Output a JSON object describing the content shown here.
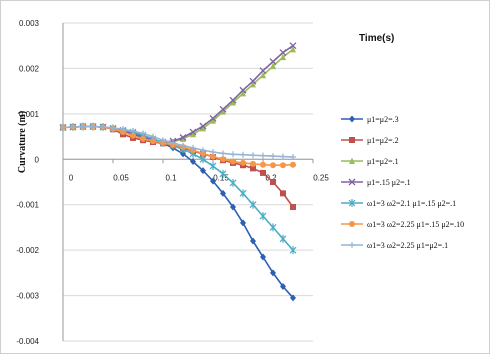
{
  "chart_data": {
    "type": "line",
    "title": "",
    "xlabel": "Time(s)",
    "ylabel": "Curvature (m)",
    "xlim": [
      0,
      0.25
    ],
    "ylim": [
      -0.004,
      0.003
    ],
    "x_ticks": [
      "0",
      "0.05",
      "0.1",
      "0.15",
      "0.2",
      "0.25"
    ],
    "y_ticks": [
      "0.003",
      "0.002",
      "0.001",
      "0",
      "-0.001",
      "-0.002",
      "-0.003",
      "-0.004"
    ],
    "grid": "horizontal",
    "legend_position": "right",
    "x": [
      0,
      0.01,
      0.02,
      0.03,
      0.04,
      0.05,
      0.06,
      0.07,
      0.08,
      0.09,
      0.1,
      0.11,
      0.12,
      0.13,
      0.14,
      0.15,
      0.16,
      0.17,
      0.18,
      0.19,
      0.2,
      0.21,
      0.22,
      0.23
    ],
    "series": [
      {
        "name": "μ1=μ2=.3",
        "color": "#2f5fb3",
        "marker": "diamond",
        "values": [
          0.0007,
          0.00071,
          0.00072,
          0.00072,
          0.00071,
          0.00068,
          0.00062,
          0.00055,
          0.00048,
          0.00042,
          0.00035,
          0.00025,
          0.00012,
          -5e-05,
          -0.00025,
          -0.00048,
          -0.00075,
          -0.00105,
          -0.0014,
          -0.0018,
          -0.00215,
          -0.0025,
          -0.0028,
          -0.00305
        ]
      },
      {
        "name": "μ1=μ2=.2",
        "color": "#c0504d",
        "marker": "square",
        "values": [
          0.0007,
          0.00071,
          0.00072,
          0.00072,
          0.00071,
          0.00066,
          0.00055,
          0.00047,
          0.00042,
          0.00038,
          0.00035,
          0.0003,
          0.00025,
          0.00018,
          0.00012,
          5e-05,
          -2e-05,
          -8e-05,
          -0.00013,
          -0.0002,
          -0.0003,
          -0.0005,
          -0.00075,
          -0.00105
        ]
      },
      {
        "name": "μ1=μ2=.1",
        "color": "#9bbb59",
        "marker": "triangle",
        "values": [
          0.0007,
          0.00071,
          0.00072,
          0.00072,
          0.00071,
          0.00068,
          0.00062,
          0.00057,
          0.0005,
          0.00042,
          0.00037,
          0.00038,
          0.00045,
          0.00055,
          0.00068,
          0.00085,
          0.00105,
          0.00125,
          0.00145,
          0.00165,
          0.00185,
          0.00205,
          0.00225,
          0.00242
        ]
      },
      {
        "name": "μ1=.15 μ2=.1",
        "color": "#8064a2",
        "marker": "x",
        "values": [
          0.0007,
          0.00071,
          0.00072,
          0.00072,
          0.00071,
          0.00068,
          0.00062,
          0.00057,
          0.0005,
          0.00042,
          0.00038,
          0.0004,
          0.00048,
          0.0006,
          0.00073,
          0.0009,
          0.0011,
          0.0013,
          0.00152,
          0.00172,
          0.00195,
          0.00215,
          0.00235,
          0.0025
        ]
      },
      {
        "name": "ω1=3 ω2=2.1 μ1=.15 μ2=.1",
        "color": "#4bacc6",
        "marker": "asterisk",
        "values": [
          0.0007,
          0.00071,
          0.00072,
          0.00072,
          0.00071,
          0.00068,
          0.00064,
          0.0006,
          0.00053,
          0.00045,
          0.00037,
          0.0003,
          0.00022,
          0.00012,
          0.0,
          -0.00015,
          -0.00032,
          -0.00052,
          -0.00075,
          -0.001,
          -0.00125,
          -0.0015,
          -0.00175,
          -0.002
        ]
      },
      {
        "name": "ω1=3 ω2=2.25 μ1=.15 μ2=.10",
        "color": "#f79646",
        "marker": "circle",
        "values": [
          0.0007,
          0.00071,
          0.00072,
          0.00072,
          0.00071,
          0.00067,
          0.0006,
          0.00052,
          0.00045,
          0.0004,
          0.00036,
          0.00032,
          0.00027,
          0.0002,
          0.00013,
          6e-05,
          0.0,
          -5e-05,
          -8e-05,
          -0.0001,
          -0.00012,
          -0.00013,
          -0.00013,
          -0.00012
        ]
      },
      {
        "name": "ω1=3 ω2=2.25 μ1=μ2=.1",
        "color": "#95b3d7",
        "marker": "plus",
        "values": [
          0.0007,
          0.00071,
          0.00072,
          0.00072,
          0.00071,
          0.00069,
          0.00066,
          0.00062,
          0.00057,
          0.0005,
          0.00042,
          0.00036,
          0.0003,
          0.00025,
          0.0002,
          0.00016,
          0.00013,
          0.00011,
          0.0001,
          9e-05,
          8e-05,
          7e-05,
          6e-05,
          5e-05
        ]
      }
    ]
  }
}
